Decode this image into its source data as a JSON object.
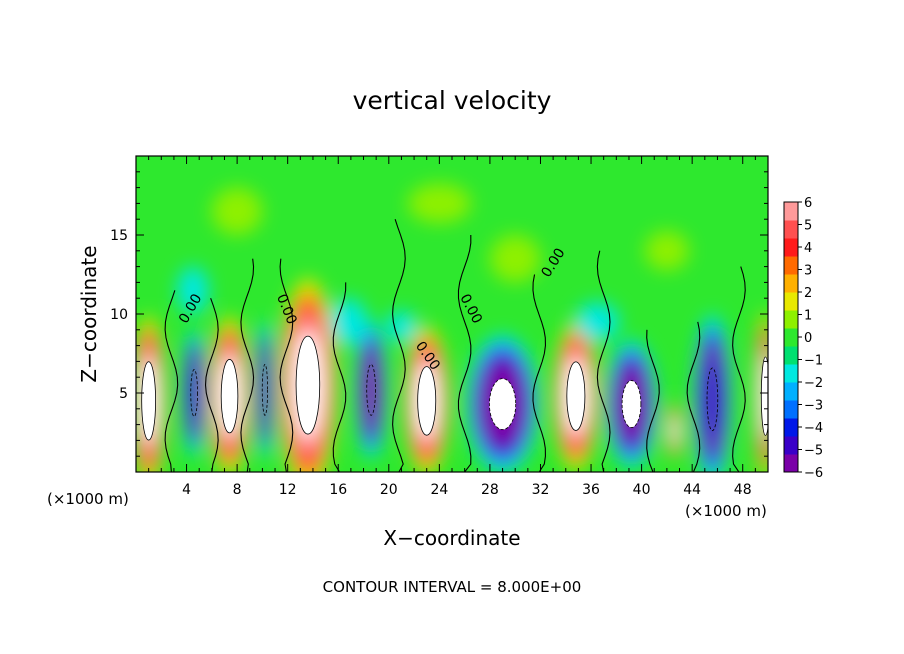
{
  "chart_data": {
    "type": "heatmap",
    "title": "vertical velocity",
    "xlabel": "X−coordinate",
    "ylabel": "Z−coordinate",
    "x_unit_left": "(×1000 m)",
    "x_unit_right": "(×1000 m)",
    "footer": "CONTOUR INTERVAL = 8.000E+00",
    "xlim": [
      0,
      50
    ],
    "ylim": [
      0,
      20
    ],
    "x_ticks": [
      4,
      8,
      12,
      16,
      20,
      24,
      28,
      32,
      36,
      40,
      44,
      48
    ],
    "x_tick_labels": [
      "4",
      "8",
      "12",
      "16",
      "20",
      "24",
      "28",
      "32",
      "36",
      "40",
      "44",
      "48"
    ],
    "y_ticks": [
      5,
      10,
      15
    ],
    "y_tick_labels": [
      "5",
      "10",
      "15"
    ],
    "colorbar": {
      "min": -6,
      "max": 6,
      "tick_values": [
        6,
        5,
        4,
        3,
        2,
        1,
        0,
        -1,
        -2,
        -3,
        -4,
        -5,
        -6
      ],
      "tick_labels": [
        "6",
        "5",
        "4",
        "3",
        "2",
        "1",
        "0",
        "−1",
        "−2",
        "−3",
        "−4",
        "−5",
        "−6"
      ],
      "colors": [
        "#7a00a8",
        "#3a00c8",
        "#0018e8",
        "#0070ff",
        "#00b0ff",
        "#00e8e0",
        "#00e070",
        "#2ee82e",
        "#8ef000",
        "#e8e800",
        "#ffb000",
        "#ff6a00",
        "#ff1a1a",
        "#ff5050",
        "#ff9a9a"
      ]
    },
    "contour_labels": [
      {
        "text": "0.00",
        "x": 4.6,
        "y": 10.2,
        "angle": -60
      },
      {
        "text": "0.00",
        "x": 11.6,
        "y": 10.2,
        "angle": 68
      },
      {
        "text": "0.00",
        "x": 22.8,
        "y": 7.2,
        "angle": 55
      },
      {
        "text": "0.00",
        "x": 26.2,
        "y": 10.2,
        "angle": 62
      },
      {
        "text": "0.00",
        "x": 33.3,
        "y": 13.1,
        "angle": -58
      }
    ],
    "cells": [
      {
        "x": 1.0,
        "z": 4.5,
        "w": 2.0,
        "h": 8,
        "v": 7
      },
      {
        "x": 4.6,
        "z": 5.0,
        "w": 1.4,
        "h": 6,
        "v": -5
      },
      {
        "x": 7.4,
        "z": 4.8,
        "w": 2.4,
        "h": 7.5,
        "v": 7
      },
      {
        "x": 10.2,
        "z": 5.2,
        "w": 1.1,
        "h": 6.5,
        "v": -4.5
      },
      {
        "x": 13.6,
        "z": 5.5,
        "w": 3.4,
        "h": 10,
        "v": 7
      },
      {
        "x": 18.6,
        "z": 5.2,
        "w": 1.8,
        "h": 6.5,
        "v": -5.5
      },
      {
        "x": 23.0,
        "z": 4.5,
        "w": 2.6,
        "h": 7,
        "v": 7
      },
      {
        "x": 29.0,
        "z": 4.3,
        "w": 4.2,
        "h": 6.5,
        "v": -6.5
      },
      {
        "x": 34.8,
        "z": 4.8,
        "w": 2.6,
        "h": 7,
        "v": 7
      },
      {
        "x": 39.2,
        "z": 4.3,
        "w": 3.0,
        "h": 6,
        "v": -6.2
      },
      {
        "x": 42.6,
        "z": 2.6,
        "w": 0.9,
        "h": 2.6,
        "v": 4.2
      },
      {
        "x": 45.6,
        "z": 4.6,
        "w": 2.2,
        "h": 8,
        "v": -4.5
      },
      {
        "x": 49.8,
        "z": 4.8,
        "w": 1.2,
        "h": 8,
        "v": 7
      },
      {
        "x": 4.5,
        "z": 11.5,
        "w": 2.5,
        "h": 3,
        "v": -1.8
      },
      {
        "x": 21.0,
        "z": 9.2,
        "w": 2.5,
        "h": 2,
        "v": -1.5
      },
      {
        "x": 16.8,
        "z": 9.5,
        "w": 3.0,
        "h": 3,
        "v": -2
      },
      {
        "x": 36.5,
        "z": 9.5,
        "w": 3.5,
        "h": 2.5,
        "v": -1.2
      },
      {
        "x": 8.0,
        "z": 16.5,
        "w": 4.0,
        "h": 3,
        "v": 0.5
      },
      {
        "x": 30.0,
        "z": 13.5,
        "w": 4.0,
        "h": 3,
        "v": 1.1
      },
      {
        "x": 42.0,
        "z": 14.0,
        "w": 3.5,
        "h": 2.5,
        "v": 1.1
      },
      {
        "x": 24.0,
        "z": 17.0,
        "w": 5.0,
        "h": 2.5,
        "v": 0.4
      }
    ],
    "grid": false,
    "legend": "colorbar-right"
  }
}
